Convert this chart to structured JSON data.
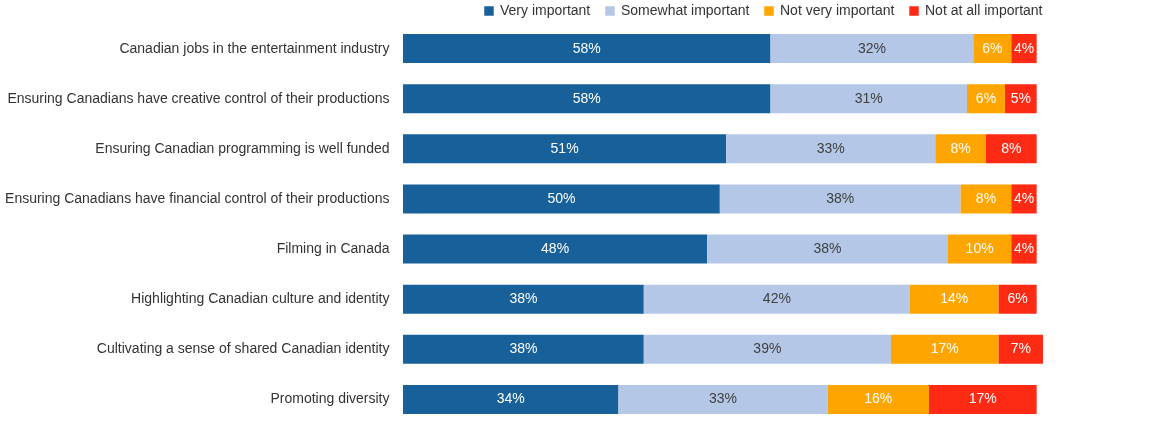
{
  "chart_data": {
    "type": "bar",
    "orientation": "horizontal",
    "stacked": true,
    "legend": "top right",
    "xlim": [
      0,
      101
    ],
    "tick_labels": "y",
    "categories": [
      "Canadian jobs in the entertainment industry",
      "Ensuring Canadians have creative control of their productions",
      "Ensuring Canadian programming is well funded",
      "Ensuring Canadians have financial control of their productions",
      "Filming in Canada ",
      "Highlighting Canadian culture and identity",
      "Cultivating a sense of shared Canadian identity",
      "Promoting diversity"
    ],
    "series": [
      {
        "name": "Very important",
        "color": "#17609a",
        "values": [
          58,
          58,
          51,
          50,
          48,
          38,
          38,
          34
        ],
        "value_labels": [
          "58%",
          "58%",
          "51%",
          "50%",
          "48%",
          "38%",
          "38%",
          "34%"
        ]
      },
      {
        "name": "Somewhat important",
        "color": "#b4c7e7",
        "values": [
          32,
          31,
          33,
          38,
          38,
          42,
          39,
          33
        ],
        "value_labels": [
          "32%",
          "31%",
          "33%",
          "38%",
          "38%",
          "42%",
          "39%",
          "33%"
        ]
      },
      {
        "name": "Not very important",
        "color": "#ffa500",
        "values": [
          6,
          6,
          8,
          8,
          10,
          14,
          17,
          16
        ],
        "value_labels": [
          "6%",
          "6%",
          "8%",
          "8%",
          "10%",
          "14%",
          "17%",
          "16%"
        ]
      },
      {
        "name": "Not at all important",
        "color": "#ff2a14",
        "values": [
          4,
          5,
          8,
          4,
          4,
          6,
          7,
          17
        ],
        "value_labels": [
          "4%",
          "5%",
          "8%",
          "4%",
          "4%",
          "6%",
          "7%",
          "17%"
        ]
      }
    ]
  }
}
